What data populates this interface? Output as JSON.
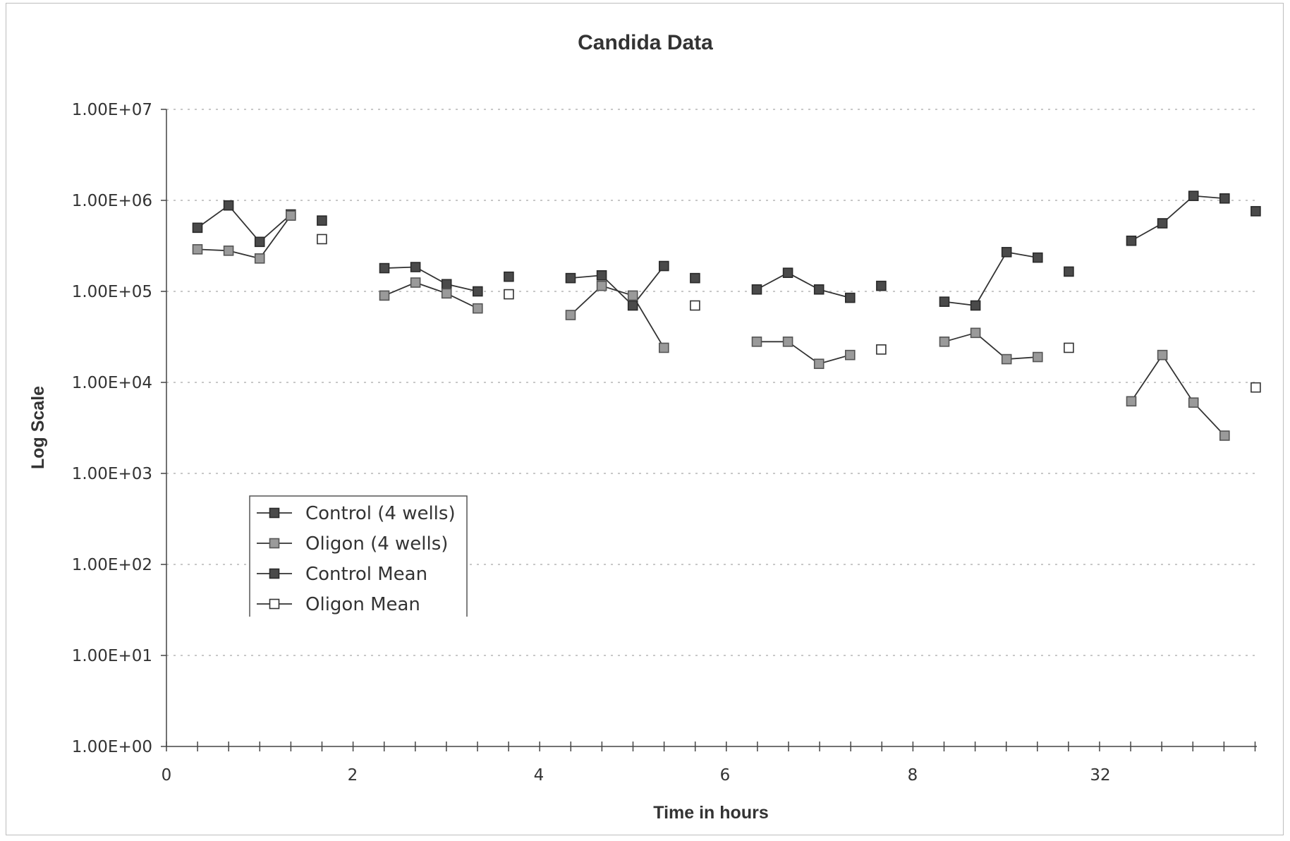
{
  "chart_data": {
    "type": "scatter",
    "title": "Candida Data",
    "xlabel": "Time in hours",
    "ylabel": "Log Scale",
    "yscale": "log",
    "ylim": [
      1,
      10000000
    ],
    "y_tick_labels": [
      "1.00E+00",
      "1.00E+01",
      "1.00E+02",
      "1.00E+03",
      "1.00E+04",
      "1.00E+05",
      "1.00E+06",
      "1.00E+07"
    ],
    "x_tick_labels": [
      "0",
      "2",
      "4",
      "6",
      "8",
      "32"
    ],
    "grid": "horizontal dotted",
    "legend_position": "left",
    "groups": [
      {
        "x_label": "0"
      },
      {
        "x_label": "2"
      },
      {
        "x_label": "4"
      },
      {
        "x_label": "6"
      },
      {
        "x_label": "8"
      },
      {
        "x_label": "32"
      }
    ],
    "series": [
      {
        "name": "Control (4 wells)",
        "style": "line-filled-square",
        "values": [
          [
            500000,
            880000,
            350000,
            700000
          ],
          [
            180000,
            185000,
            120000,
            100000
          ],
          [
            140000,
            150000,
            70000,
            190000
          ],
          [
            105000,
            160000,
            105000,
            85000
          ],
          [
            77000,
            70000,
            270000,
            235000
          ],
          [
            360000,
            560000,
            1120000,
            1050000
          ]
        ]
      },
      {
        "name": "Oligon (4 wells)",
        "style": "line-gray-square",
        "values": [
          [
            290000,
            280000,
            230000,
            680000
          ],
          [
            90000,
            125000,
            95000,
            65000
          ],
          [
            55000,
            115000,
            90000,
            24000
          ],
          [
            28000,
            28000,
            16000,
            20000
          ],
          [
            28000,
            35000,
            18000,
            19000
          ],
          [
            6200,
            20000,
            6000,
            2600
          ]
        ]
      },
      {
        "name": "Control Mean",
        "style": "filled-square",
        "values": [
          600000,
          145000,
          140000,
          115000,
          165000,
          760000
        ]
      },
      {
        "name": "Oligon Mean",
        "style": "open-square",
        "values": [
          375000,
          93000,
          70000,
          23000,
          24000,
          8800
        ]
      }
    ]
  },
  "colors": {
    "control": "#4a4a4a",
    "oligon_fill": "#9a9a9a",
    "line": "#333333",
    "grid": "#c8c8c8",
    "axis": "#444444",
    "frame": "#bdbdbd"
  }
}
